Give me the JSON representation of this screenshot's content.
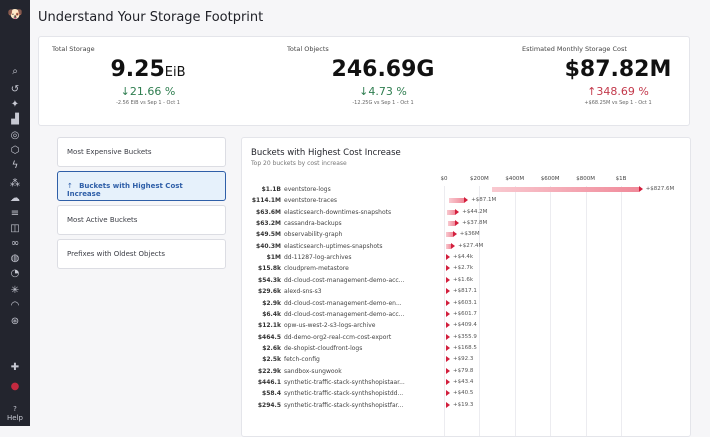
{
  "sidebar": {
    "icons": [
      "logo-icon",
      "search-icon",
      "recent-icon",
      "sparkle-icon",
      "dashboards-icon",
      "infrastructure-icon",
      "apm-icon",
      "events-icon",
      "services-icon",
      "cloud-icon",
      "logs-icon",
      "security-icon",
      "integrations-icon",
      "network-icon",
      "monitors-icon",
      "bugs-icon",
      "performance-icon",
      "synthetics-icon",
      "extensions-icon",
      "user-avatar-icon"
    ],
    "help_label": "Help"
  },
  "header": {
    "title": "Understand Your Storage Footprint"
  },
  "stats": [
    {
      "label": "Total Storage",
      "value": "9.25",
      "unit": "EiB",
      "direction": "down",
      "change": "21.66 %",
      "detail": "-2.56 EiB vs Sep 1 - Oct 1"
    },
    {
      "label": "Total Objects",
      "value": "246.69G",
      "unit": "",
      "direction": "down",
      "change": "4.73 %",
      "detail": "-12.25G vs Sep 1 - Oct 1"
    },
    {
      "label": "Estimated Monthly Storage Cost",
      "value": "$87.82M",
      "unit": "",
      "direction": "up",
      "change": "348.69 %",
      "detail": "+$68.25M vs Sep 1 - Oct 1"
    }
  ],
  "nav": [
    {
      "label": "Most Expensive Buckets",
      "active": false
    },
    {
      "label": "Buckets with Highest Cost Increase",
      "active": true
    },
    {
      "label": "Most Active Buckets",
      "active": false
    },
    {
      "label": "Prefixes with Oldest Objects",
      "active": false
    }
  ],
  "colors": {
    "increase": "#d21e3c",
    "bar": "#f08a9a",
    "active": "#2f5fa8",
    "down": "#2e7d4f",
    "up": "#c3394b"
  },
  "chart_data": {
    "type": "bar",
    "title": "Buckets with Highest Cost Increase",
    "subtitle": "Top 20 buckets by cost increase",
    "xlim": [
      0,
      1100000000
    ],
    "ticks": [
      {
        "value": 0,
        "label": "$0"
      },
      {
        "value": 200000000,
        "label": "$200M"
      },
      {
        "value": 400000000,
        "label": "$400M"
      },
      {
        "value": 600000000,
        "label": "$600M"
      },
      {
        "value": 800000000,
        "label": "$800M"
      },
      {
        "value": 1000000000,
        "label": "$1B"
      }
    ],
    "rows": [
      {
        "name": "eventstore-logs",
        "cost": "$1.1B",
        "cost_value": 1100000000,
        "delta": "+$827.6M",
        "delta_value": 827600000
      },
      {
        "name": "eventstore-traces",
        "cost": "$114.1M",
        "cost_value": 114100000,
        "delta": "+$87.1M",
        "delta_value": 87100000
      },
      {
        "name": "elasticsearch-downtimes-snapshots",
        "cost": "$63.6M",
        "cost_value": 63600000,
        "delta": "+$44.2M",
        "delta_value": 44200000
      },
      {
        "name": "cassandra-backups",
        "cost": "$63.2M",
        "cost_value": 63200000,
        "delta": "+$37.8M",
        "delta_value": 37800000
      },
      {
        "name": "observability-graph",
        "cost": "$49.5M",
        "cost_value": 49500000,
        "delta": "+$36M",
        "delta_value": 36000000
      },
      {
        "name": "elasticsearch-uptimes-snapshots",
        "cost": "$40.3M",
        "cost_value": 40300000,
        "delta": "+$27.4M",
        "delta_value": 27400000
      },
      {
        "name": "dd-11287-log-archives",
        "cost": "$1M",
        "cost_value": 1000000,
        "delta": "+$4.4k",
        "delta_value": 4400
      },
      {
        "name": "cloudprem-metastore",
        "cost": "$15.8k",
        "cost_value": 15800,
        "delta": "+$2.7k",
        "delta_value": 2700
      },
      {
        "name": "dd-cloud-cost-management-demo-acc...",
        "cost": "$54.3k",
        "cost_value": 54300,
        "delta": "+$1.6k",
        "delta_value": 1600
      },
      {
        "name": "alexd-sns-s3",
        "cost": "$29.6k",
        "cost_value": 29600,
        "delta": "+$817.1",
        "delta_value": 817.1
      },
      {
        "name": "dd-cloud-cost-management-demo-en...",
        "cost": "$2.9k",
        "cost_value": 2900,
        "delta": "+$603.1",
        "delta_value": 603.1
      },
      {
        "name": "dd-cloud-cost-management-demo-acc...",
        "cost": "$6.4k",
        "cost_value": 6400,
        "delta": "+$601.7",
        "delta_value": 601.7
      },
      {
        "name": "opw-us-west-2-s3-logs-archive",
        "cost": "$12.1k",
        "cost_value": 12100,
        "delta": "+$409.4",
        "delta_value": 409.4
      },
      {
        "name": "dd-demo-org2-real-ccm-cost-export",
        "cost": "$464.5",
        "cost_value": 464.5,
        "delta": "+$355.9",
        "delta_value": 355.9
      },
      {
        "name": "de-shopist-cloudfront-logs",
        "cost": "$2.6k",
        "cost_value": 2600,
        "delta": "+$168.5",
        "delta_value": 168.5
      },
      {
        "name": "fetch-config",
        "cost": "$2.5k",
        "cost_value": 2500,
        "delta": "+$92.3",
        "delta_value": 92.3
      },
      {
        "name": "sandbox-sungwook",
        "cost": "$22.9k",
        "cost_value": 22900,
        "delta": "+$79.8",
        "delta_value": 79.8
      },
      {
        "name": "synthetic-traffic-stack-synthshopistaar...",
        "cost": "$446.1",
        "cost_value": 446.1,
        "delta": "+$43.4",
        "delta_value": 43.4
      },
      {
        "name": "synthetic-traffic-stack-synthshopistdd...",
        "cost": "$58.4",
        "cost_value": 58.4,
        "delta": "+$40.5",
        "delta_value": 40.5
      },
      {
        "name": "synthetic-traffic-stack-synthshopistfar...",
        "cost": "$294.5",
        "cost_value": 294.5,
        "delta": "+$19.3",
        "delta_value": 19.3
      }
    ]
  }
}
